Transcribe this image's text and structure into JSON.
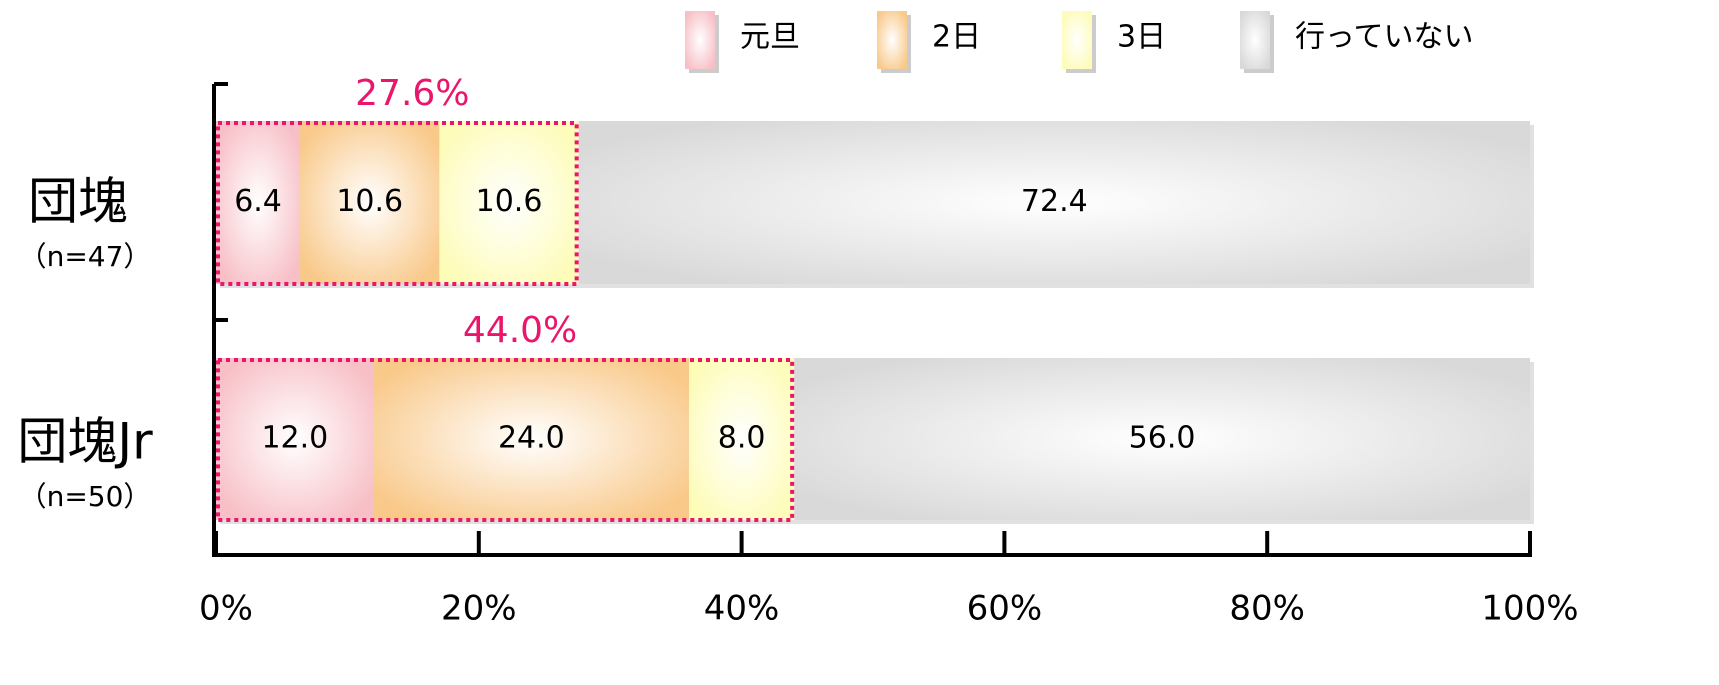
{
  "chart_data": {
    "type": "stacked-bar-horizontal",
    "categories": [
      "団塊",
      "団塊Jr"
    ],
    "category_notes": [
      "（n=47）",
      "（n=50）"
    ],
    "series": [
      {
        "name": "元旦",
        "color": "#f7bfc6",
        "values": [
          6.4,
          12.0
        ],
        "value_labels": [
          "6.4",
          "12.0"
        ]
      },
      {
        "name": "2日",
        "color": "#f9c98a",
        "values": [
          10.6,
          24.0
        ],
        "value_labels": [
          "10.6",
          "24.0"
        ]
      },
      {
        "name": "3日",
        "color": "#fdfcb8",
        "values": [
          10.6,
          8.0
        ],
        "value_labels": [
          "10.6",
          "8.0"
        ]
      },
      {
        "name": "行っていない",
        "color": "#d9d9d9",
        "values": [
          72.4,
          56.0
        ],
        "value_labels": [
          "72.4",
          "56.0"
        ]
      }
    ],
    "annotations": [
      {
        "label": "27.6%",
        "value": 27.6,
        "color": "#e8176b"
      },
      {
        "label": "44.0%",
        "value": 44.0,
        "color": "#e8176b"
      }
    ],
    "xlim": [
      0,
      100
    ],
    "xticks": [
      {
        "value": 0,
        "label": "0%"
      },
      {
        "value": 20,
        "label": "20%"
      },
      {
        "value": 40,
        "label": "40%"
      },
      {
        "value": 60,
        "label": "60%"
      },
      {
        "value": 80,
        "label": "80%"
      },
      {
        "value": 100,
        "label": "100%"
      }
    ]
  }
}
